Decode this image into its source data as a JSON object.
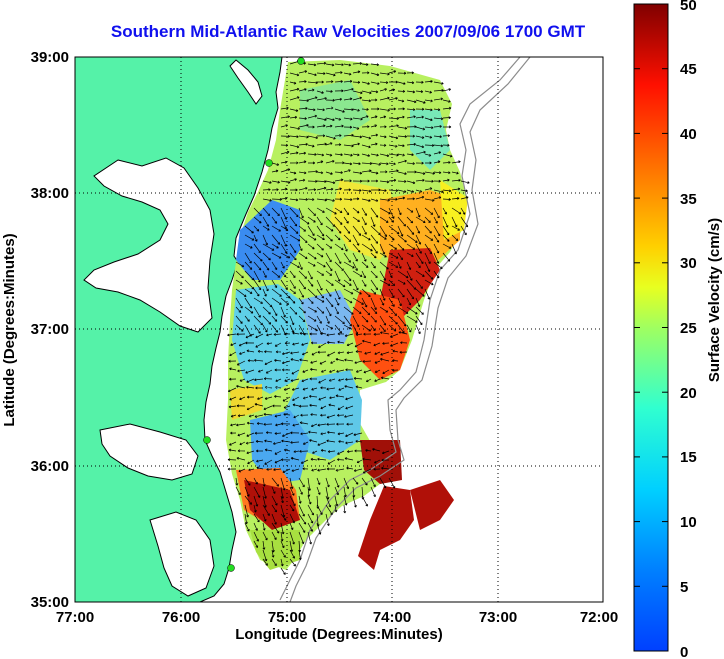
{
  "title": "Southern Mid-Atlantic Raw Velocities 2007/09/06 1700 GMT",
  "x_axis": {
    "label": "Longitude (Degrees:Minutes)",
    "ticks": [
      "77:00",
      "76:00",
      "75:00",
      "74:00",
      "73:00",
      "72:00"
    ]
  },
  "y_axis": {
    "label": "Latitude (Degrees:Minutes)",
    "ticks": [
      "39:00",
      "38:00",
      "37:00",
      "36:00",
      "35:00"
    ]
  },
  "colorbar": {
    "label": "Surface Velocity (cm/s)",
    "ticks": [
      "50",
      "45",
      "40",
      "35",
      "30",
      "25",
      "20",
      "15",
      "10",
      "5",
      "0"
    ],
    "range": [
      0,
      50
    ],
    "colormap": "jet"
  },
  "colors": {
    "title": "#1010ee",
    "land": "#55f2a8",
    "coastline": "#000000",
    "bathymetry": "#8c8c8c",
    "grid": "#000000",
    "station_marker": "#22dd22"
  },
  "extent": {
    "lon": [
      -77,
      -72
    ],
    "lat": [
      35,
      39
    ]
  },
  "grid": "dotted"
}
